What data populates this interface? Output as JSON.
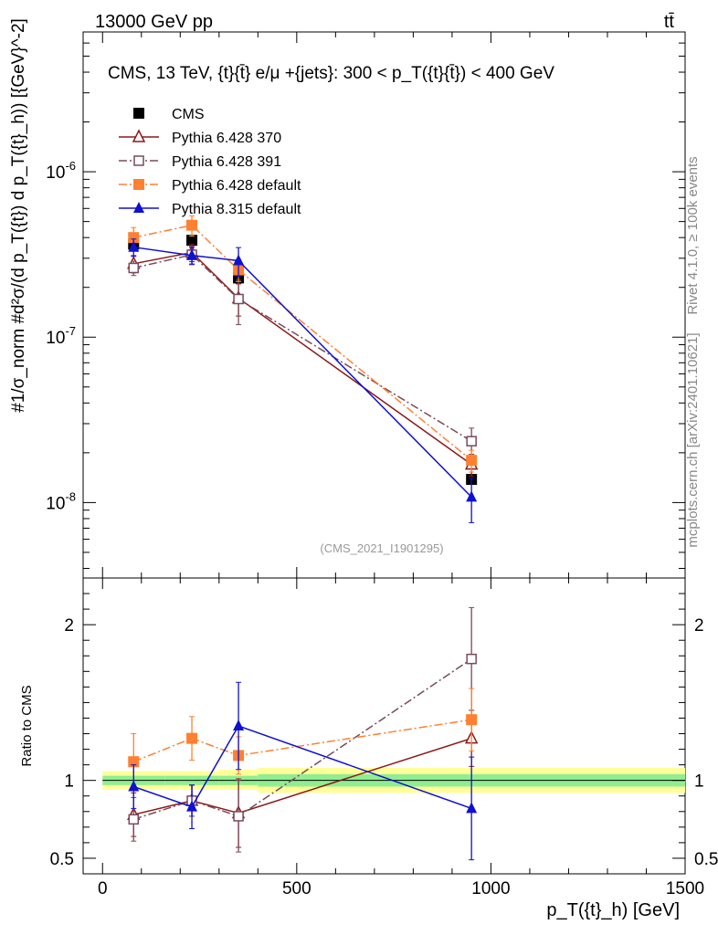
{
  "header": {
    "energy_label": "13000 GeV pp",
    "process_label": "tt̄",
    "side_label_top": "Rivet 4.1.0, ≥ 100k events",
    "side_label_bottom": "mcplots.cern.ch [arXiv:2401.10621]",
    "analysis_id": "(CMS_2021_I1901295)"
  },
  "chart_data": {
    "type": "line",
    "title": "CMS, 13 TeV, {t}{t̄} e/μ +{jets}: 300 <  p_T({t}{t̄}) < 400 GeV",
    "xlabel": "p_T({t}_h) [GeV]",
    "ylabel": "#1/σ_norm #d²σ/(d p_T({t}) d p_T({t}_h)) [{GeV}^-2]",
    "ratio_ylabel": "Ratio to CMS",
    "xlim": [
      -50,
      1500
    ],
    "ylim": [
      3.5e-09,
      7e-06
    ],
    "yscale": "log",
    "ratio_ylim": [
      0.4,
      2.3
    ],
    "x_ticks": [
      "0",
      "500",
      "1000",
      "1500"
    ],
    "y_ticks": [
      "10^-8",
      "10^-7",
      "10^-6"
    ],
    "ratio_ticks": [
      "0.5",
      "1",
      "2"
    ],
    "bins": [
      [
        0,
        160
      ],
      [
        160,
        300
      ],
      [
        300,
        400
      ],
      [
        400,
        1500
      ]
    ],
    "x": [
      80,
      230,
      350,
      950
    ],
    "reference": {
      "name": "CMS",
      "values": [
        3.65e-07,
        3.85e-07,
        2.28e-07,
        1.38e-08
      ],
      "band_inner": [
        [
          0.97,
          1.03
        ],
        [
          0.97,
          1.03
        ],
        [
          0.97,
          1.03
        ],
        [
          0.96,
          1.04
        ]
      ],
      "band_outer": [
        [
          0.94,
          1.06
        ],
        [
          0.94,
          1.06
        ],
        [
          0.94,
          1.07
        ],
        [
          0.92,
          1.08
        ]
      ]
    },
    "series": [
      {
        "name": "Pythia 6.428 370",
        "color": "#8b1a1a",
        "marker": "triangle-open",
        "dash": "",
        "values": [
          2.78e-07,
          3.25e-07,
          1.72e-07,
          1.7e-08
        ],
        "errors": [
          0.12,
          0.12,
          0.22,
          0.15
        ],
        "ratio": [
          0.78,
          0.87,
          0.79,
          1.27
        ],
        "ratio_err": [
          0.14,
          0.1,
          0.22,
          0.18
        ]
      },
      {
        "name": "Pythia 6.428 391",
        "color": "#7a4a5a",
        "marker": "square-open",
        "dash": "9,3,2,3",
        "values": [
          2.62e-07,
          3.15e-07,
          1.7e-07,
          2.35e-08
        ],
        "errors": [
          0.1,
          0.12,
          0.3,
          0.2
        ],
        "ratio": [
          0.75,
          0.87,
          0.77,
          1.78
        ],
        "ratio_err": [
          0.14,
          0.1,
          0.23,
          0.33
        ]
      },
      {
        "name": "Pythia 6.428 default",
        "color": "#ff8030",
        "marker": "square",
        "dash": "9,3,2,3",
        "values": [
          4e-07,
          4.75e-07,
          2.55e-07,
          1.8e-08
        ],
        "errors": [
          0.15,
          0.14,
          0.15,
          0.15
        ],
        "ratio": [
          1.12,
          1.27,
          1.16,
          1.39
        ],
        "ratio_err": [
          0.18,
          0.14,
          0.12,
          0.2
        ]
      },
      {
        "name": "Pythia 8.315 default",
        "color": "#1010d0",
        "marker": "triangle",
        "dash": "",
        "values": [
          3.5e-07,
          3.12e-07,
          2.9e-07,
          1.08e-08
        ],
        "errors": [
          0.12,
          0.12,
          0.2,
          0.3
        ],
        "ratio": [
          0.96,
          0.83,
          1.35,
          0.82
        ],
        "ratio_err": [
          0.14,
          0.14,
          0.28,
          0.33
        ]
      }
    ]
  }
}
